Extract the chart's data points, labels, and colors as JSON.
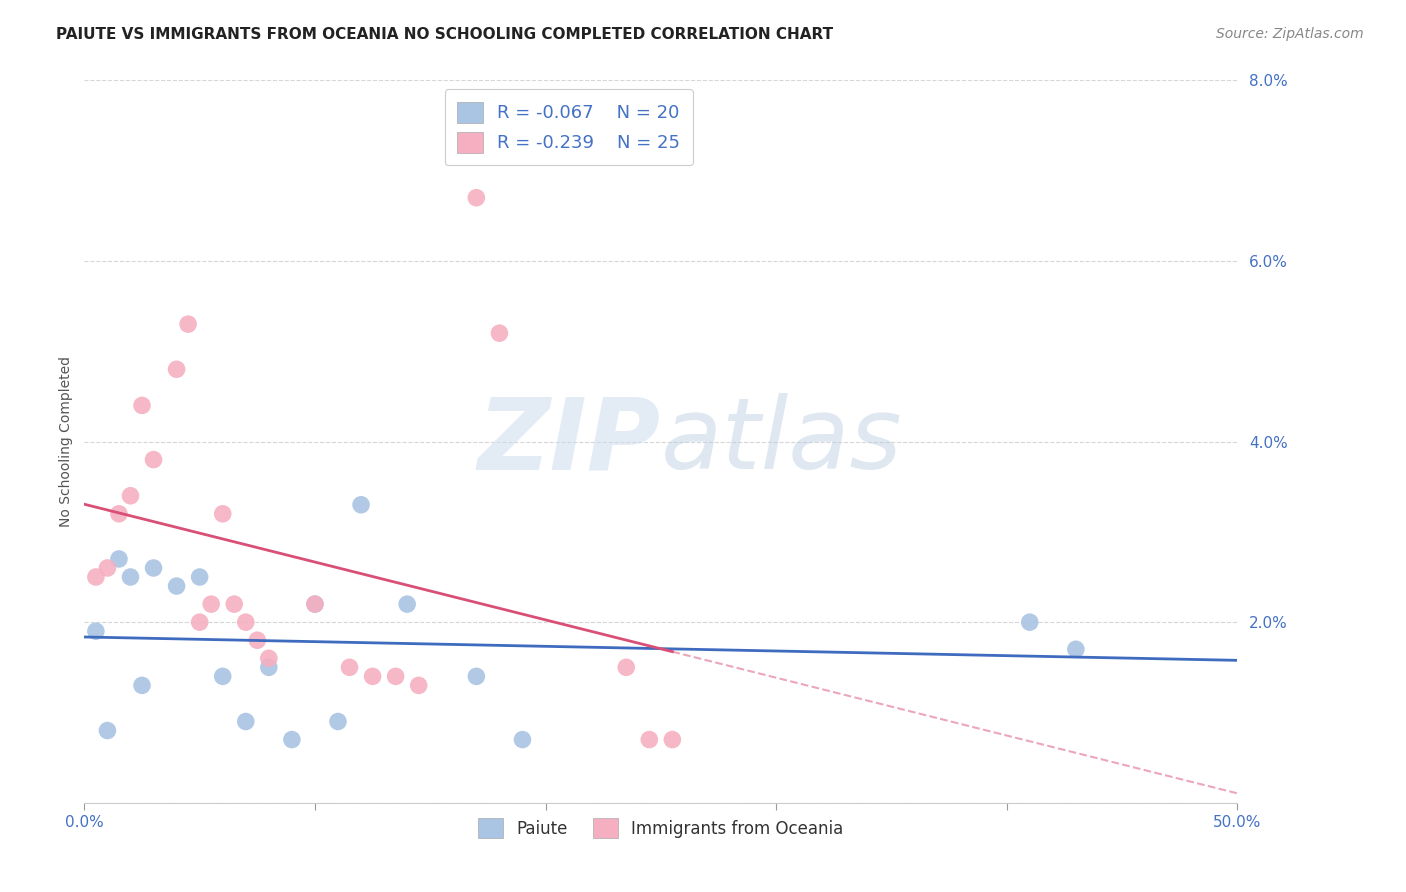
{
  "title": "PAIUTE VS IMMIGRANTS FROM OCEANIA NO SCHOOLING COMPLETED CORRELATION CHART",
  "source": "Source: ZipAtlas.com",
  "ylabel": "No Schooling Completed",
  "xlim": [
    0.0,
    0.5
  ],
  "ylim": [
    0.0,
    0.08
  ],
  "xticks": [
    0.0,
    0.1,
    0.2,
    0.3,
    0.4,
    0.5
  ],
  "xticklabels_ends": {
    "0.0": "0.0%",
    "0.5": "50.0%"
  },
  "yticks": [
    0.0,
    0.02,
    0.04,
    0.06,
    0.08
  ],
  "yticklabels": [
    "",
    "2.0%",
    "4.0%",
    "6.0%",
    "8.0%"
  ],
  "paiute_x": [
    0.005,
    0.01,
    0.015,
    0.02,
    0.025,
    0.03,
    0.04,
    0.05,
    0.06,
    0.07,
    0.08,
    0.09,
    0.1,
    0.11,
    0.12,
    0.14,
    0.17,
    0.19,
    0.41,
    0.43
  ],
  "paiute_y": [
    0.019,
    0.008,
    0.027,
    0.025,
    0.013,
    0.026,
    0.024,
    0.025,
    0.014,
    0.009,
    0.015,
    0.007,
    0.022,
    0.009,
    0.033,
    0.022,
    0.014,
    0.007,
    0.02,
    0.017
  ],
  "oceania_x": [
    0.005,
    0.01,
    0.015,
    0.02,
    0.025,
    0.03,
    0.04,
    0.045,
    0.05,
    0.055,
    0.06,
    0.065,
    0.07,
    0.075,
    0.08,
    0.1,
    0.115,
    0.125,
    0.135,
    0.145,
    0.17,
    0.18,
    0.235,
    0.245,
    0.255
  ],
  "oceania_y": [
    0.025,
    0.026,
    0.032,
    0.034,
    0.044,
    0.038,
    0.048,
    0.053,
    0.02,
    0.022,
    0.032,
    0.022,
    0.02,
    0.018,
    0.016,
    0.022,
    0.015,
    0.014,
    0.014,
    0.013,
    0.067,
    0.052,
    0.015,
    0.007,
    0.007
  ],
  "paiute_color": "#aac4e3",
  "oceania_color": "#f5afc0",
  "paiute_line_color": "#3f6bbf",
  "oceania_line_color": "#d94f75",
  "legend_R1": "R = -0.067",
  "legend_N1": "N = 20",
  "legend_R2": "R = -0.239",
  "legend_N2": "N = 25",
  "watermark_zip": "ZIP",
  "watermark_atlas": "atlas",
  "background_color": "#ffffff",
  "grid_color": "#cccccc",
  "title_fontsize": 11,
  "axis_label_fontsize": 10,
  "tick_fontsize": 11,
  "legend_fontsize": 13,
  "source_fontsize": 10
}
